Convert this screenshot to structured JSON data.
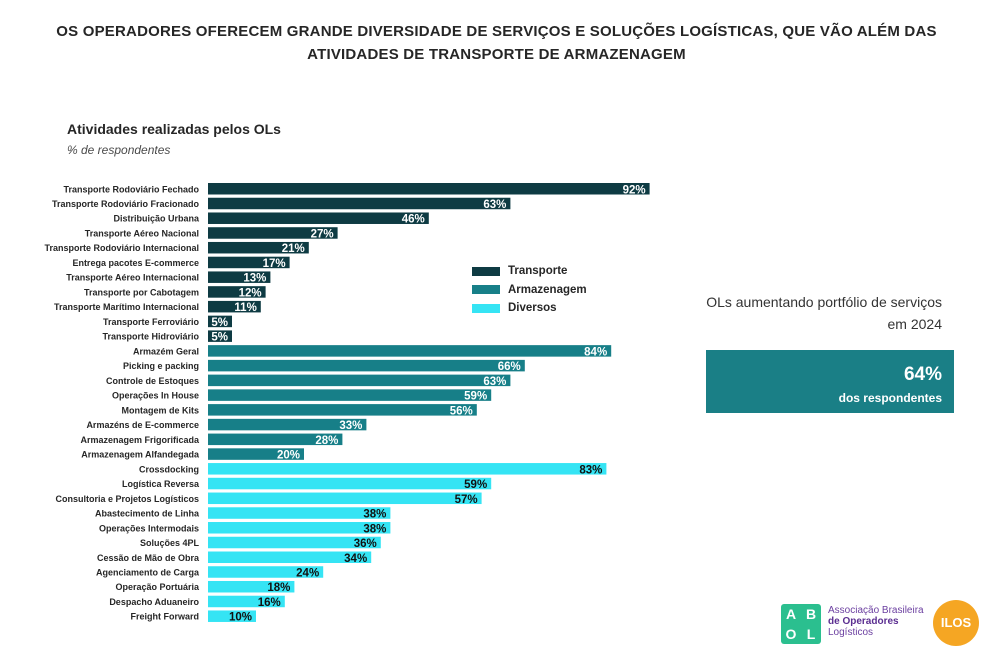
{
  "header": {
    "title": "OS OPERADORES OFERECEM GRANDE DIVERSIDADE DE SERVIÇOS E SOLUÇÕES LOGÍSTICAS, QUE VÃO ALÉM DAS ATIVIDADES DE TRANSPORTE DE ARMAZENAGEM"
  },
  "colors": {
    "transporte": "#0e3b43",
    "armazenagem": "#177f88",
    "diversos": "#35e4f4"
  },
  "chart_data": {
    "type": "bar",
    "orientation": "horizontal",
    "title": "Atividades realizadas pelos OLs",
    "subtitle": "% de respondentes",
    "xlim": [
      0,
      100
    ],
    "legend": {
      "position": "center-right",
      "entries": [
        "Transporte",
        "Armazenagem",
        "Diversos"
      ]
    },
    "series": [
      {
        "name": "Transporte",
        "color": "#0e3b43",
        "label_color": "#ffffff",
        "items": [
          {
            "label": "Transporte Rodoviário Fechado",
            "value": 92
          },
          {
            "label": "Transporte Rodoviário Fracionado",
            "value": 63
          },
          {
            "label": "Distribuição Urbana",
            "value": 46
          },
          {
            "label": "Transporte Aéreo Nacional",
            "value": 27
          },
          {
            "label": "Transporte Rodoviário Internacional",
            "value": 21
          },
          {
            "label": "Entrega pacotes E-commerce",
            "value": 17
          },
          {
            "label": "Transporte Aéreo Internacional",
            "value": 13
          },
          {
            "label": "Transporte por Cabotagem",
            "value": 12
          },
          {
            "label": "Transporte Marítimo Internacional",
            "value": 11
          },
          {
            "label": "Transporte Ferroviário",
            "value": 5
          },
          {
            "label": "Transporte Hidroviário",
            "value": 5
          }
        ]
      },
      {
        "name": "Armazenagem",
        "color": "#177f88",
        "label_color": "#ffffff",
        "items": [
          {
            "label": "Armazém Geral",
            "value": 84
          },
          {
            "label": "Picking e packing",
            "value": 66
          },
          {
            "label": "Controle de Estoques",
            "value": 63
          },
          {
            "label": "Operações In House",
            "value": 59
          },
          {
            "label": "Montagem de Kits",
            "value": 56
          },
          {
            "label": "Armazéns de E-commerce",
            "value": 33
          },
          {
            "label": "Armazenagem Frigorificada",
            "value": 28
          },
          {
            "label": "Armazenagem Alfandegada",
            "value": 20
          }
        ]
      },
      {
        "name": "Diversos",
        "color": "#35e4f4",
        "label_color": "#111111",
        "items": [
          {
            "label": "Crossdocking",
            "value": 83
          },
          {
            "label": "Logística Reversa",
            "value": 59
          },
          {
            "label": "Consultoria e Projetos Logísticos",
            "value": 57
          },
          {
            "label": "Abastecimento de Linha",
            "value": 38
          },
          {
            "label": "Operações Intermodais",
            "value": 38
          },
          {
            "label": "Soluções 4PL",
            "value": 36
          },
          {
            "label": "Cessão de Mão de Obra",
            "value": 34
          },
          {
            "label": "Agenciamento de Carga",
            "value": 24
          },
          {
            "label": "Operação Portuária",
            "value": 18
          },
          {
            "label": "Despacho Aduaneiro",
            "value": 16
          },
          {
            "label": "Freight Forward",
            "value": 10
          }
        ]
      }
    ]
  },
  "sidebar": {
    "note": "OLs aumentando portfólio de serviços em 2024",
    "kpi_value": "64%",
    "kpi_label": "dos respondentes"
  },
  "logos": {
    "abol_letters": [
      "A",
      "B",
      "O",
      "L"
    ],
    "abol_line1": "Associação Brasileira",
    "abol_line2": "de Operadores",
    "abol_line3": "Logísticos",
    "ilos": "ILOS"
  }
}
